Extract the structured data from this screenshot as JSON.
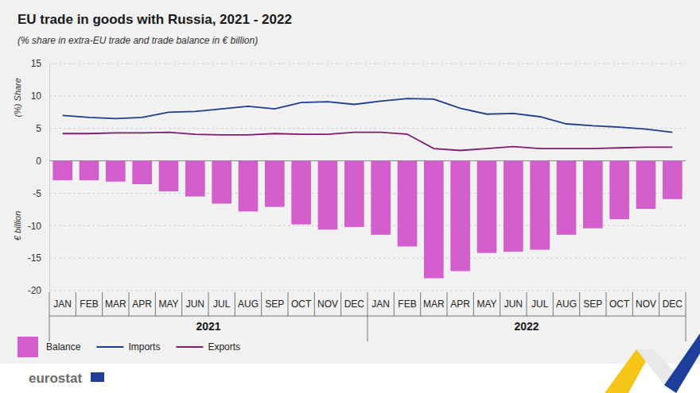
{
  "chart_data": {
    "type": "bar",
    "title": "EU trade in goods with Russia, 2021 - 2022",
    "subtitle": "(% share in extra-EU trade and trade balance in € billion)",
    "y_labels": [
      "(%) Share",
      "€ billion"
    ],
    "categories": [
      "JAN",
      "FEB",
      "MAR",
      "APR",
      "MAY",
      "JUN",
      "JUL",
      "AUG",
      "SEP",
      "OCT",
      "NOV",
      "DEC",
      "JAN",
      "FEB",
      "MAR",
      "APR",
      "MAY",
      "JUN",
      "JUL",
      "AUG",
      "SEP",
      "OCT",
      "NOV",
      "DEC"
    ],
    "category_groups": [
      {
        "label": "2021",
        "size": 12
      },
      {
        "label": "2022",
        "size": 12
      }
    ],
    "series": [
      {
        "name": "Balance",
        "type": "bar",
        "color": "#d35fcd",
        "values": [
          -3.0,
          -3.0,
          -3.2,
          -3.6,
          -4.7,
          -5.5,
          -6.6,
          -7.8,
          -7.1,
          -9.8,
          -10.6,
          -10.2,
          -11.4,
          -13.2,
          -18.1,
          -17.0,
          -14.2,
          -14.0,
          -13.7,
          -11.4,
          -10.4,
          -9.0,
          -7.4,
          -5.9
        ]
      },
      {
        "name": "Imports",
        "type": "line",
        "color": "#1f3d8c",
        "values": [
          7.0,
          6.7,
          6.5,
          6.7,
          7.5,
          7.6,
          8.0,
          8.4,
          8.0,
          9.0,
          9.1,
          8.7,
          9.2,
          9.6,
          9.5,
          8.1,
          7.2,
          7.3,
          6.8,
          5.7,
          5.4,
          5.2,
          4.9,
          4.4
        ]
      },
      {
        "name": "Exports",
        "type": "line",
        "color": "#7b1e6e",
        "values": [
          4.2,
          4.2,
          4.3,
          4.3,
          4.4,
          4.1,
          4.0,
          4.0,
          4.2,
          4.1,
          4.1,
          4.4,
          4.4,
          4.1,
          1.9,
          1.6,
          1.9,
          2.2,
          1.9,
          1.9,
          1.9,
          2.0,
          2.1,
          2.1
        ]
      }
    ],
    "ylim": [
      -20,
      15
    ],
    "yticks": [
      -20,
      -15,
      -10,
      -5,
      0,
      5,
      10,
      15
    ],
    "grid": true,
    "legend": "bottom-left",
    "source": "eurostat"
  }
}
